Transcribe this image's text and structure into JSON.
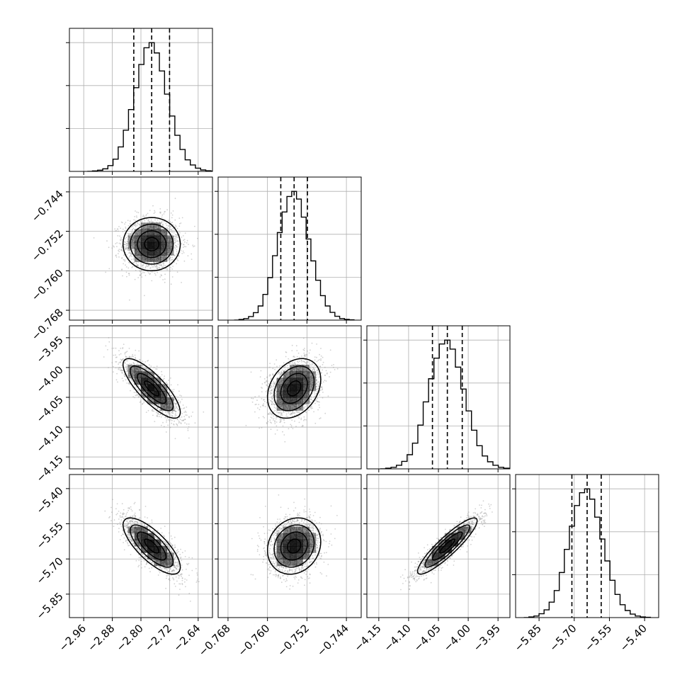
{
  "chart_data": {
    "type": "corner",
    "grid": true,
    "parameters": [
      {
        "range": [
          -3.0,
          -2.6
        ],
        "ticks": [
          -2.96,
          -2.88,
          -2.8,
          -2.72,
          -2.64
        ],
        "tick_labels": [
          "−2.96",
          "−2.88",
          "−2.80",
          "−2.72",
          "−2.64"
        ],
        "mean": -2.77,
        "sd": 0.04,
        "quantiles": [
          -2.82,
          -2.77,
          -2.72
        ],
        "hist_values": [
          0,
          0.004,
          0.009,
          0.02,
          0.045,
          0.095,
          0.19,
          0.32,
          0.48,
          0.65,
          0.83,
          0.96,
          1.0,
          0.92,
          0.78,
          0.6,
          0.43,
          0.28,
          0.17,
          0.09,
          0.05,
          0.025,
          0.011,
          0.005,
          0.002
        ]
      },
      {
        "range": [
          -0.77,
          -0.741
        ],
        "ticks": [
          -0.768,
          -0.76,
          -0.752,
          -0.744
        ],
        "tick_labels": [
          "−0.768",
          "−0.760",
          "−0.752",
          "−0.744"
        ],
        "mean": -0.7546,
        "sd": 0.0027,
        "quantiles": [
          -0.7573,
          -0.7546,
          -0.7519
        ],
        "hist_values": [
          0,
          0.005,
          0.012,
          0.028,
          0.058,
          0.11,
          0.2,
          0.33,
          0.5,
          0.68,
          0.84,
          0.96,
          1.0,
          0.94,
          0.8,
          0.63,
          0.46,
          0.31,
          0.19,
          0.11,
          0.06,
          0.03,
          0.012,
          0.006,
          0.002
        ]
      },
      {
        "range": [
          -4.17,
          -3.93
        ],
        "ticks": [
          -4.15,
          -4.1,
          -4.05,
          -4.0,
          -3.95
        ],
        "tick_labels": [
          "−4.15",
          "−4.10",
          "−4.05",
          "−4.00",
          "−3.95"
        ],
        "mean": -4.035,
        "sd": 0.025,
        "quantiles": [
          -4.06,
          -4.035,
          -4.01
        ],
        "hist_values": [
          0,
          0.005,
          0.012,
          0.028,
          0.058,
          0.11,
          0.2,
          0.34,
          0.52,
          0.7,
          0.86,
          0.97,
          1.0,
          0.93,
          0.79,
          0.62,
          0.45,
          0.3,
          0.18,
          0.1,
          0.055,
          0.028,
          0.012,
          0.005,
          0.002
        ]
      },
      {
        "range": [
          -5.95,
          -5.34
        ],
        "ticks": [
          -5.85,
          -5.7,
          -5.55,
          -5.4
        ],
        "tick_labels": [
          "−5.85",
          "−5.70",
          "−5.55",
          "−5.40"
        ],
        "mean": -5.645,
        "sd": 0.06,
        "quantiles": [
          -5.71,
          -5.645,
          -5.585
        ],
        "hist_values": [
          0,
          0.005,
          0.012,
          0.03,
          0.06,
          0.12,
          0.21,
          0.35,
          0.53,
          0.71,
          0.87,
          0.97,
          1.0,
          0.92,
          0.78,
          0.61,
          0.44,
          0.29,
          0.18,
          0.1,
          0.055,
          0.027,
          0.012,
          0.005,
          0.002
        ]
      }
    ],
    "correlations": [
      [
        1.0,
        0.0,
        -0.8,
        -0.75
      ],
      [
        0.0,
        1.0,
        0.3,
        0.15
      ],
      [
        -0.8,
        0.3,
        1.0,
        0.9
      ],
      [
        -0.75,
        0.15,
        0.9,
        1.0
      ]
    ],
    "contour_levels_sigma": [
      0.5,
      1.0,
      1.5,
      2.0
    ],
    "colors": {
      "line": "#000000",
      "grid": "#b0b0b0",
      "points": "#9a9a9a",
      "density": "#000000"
    }
  }
}
